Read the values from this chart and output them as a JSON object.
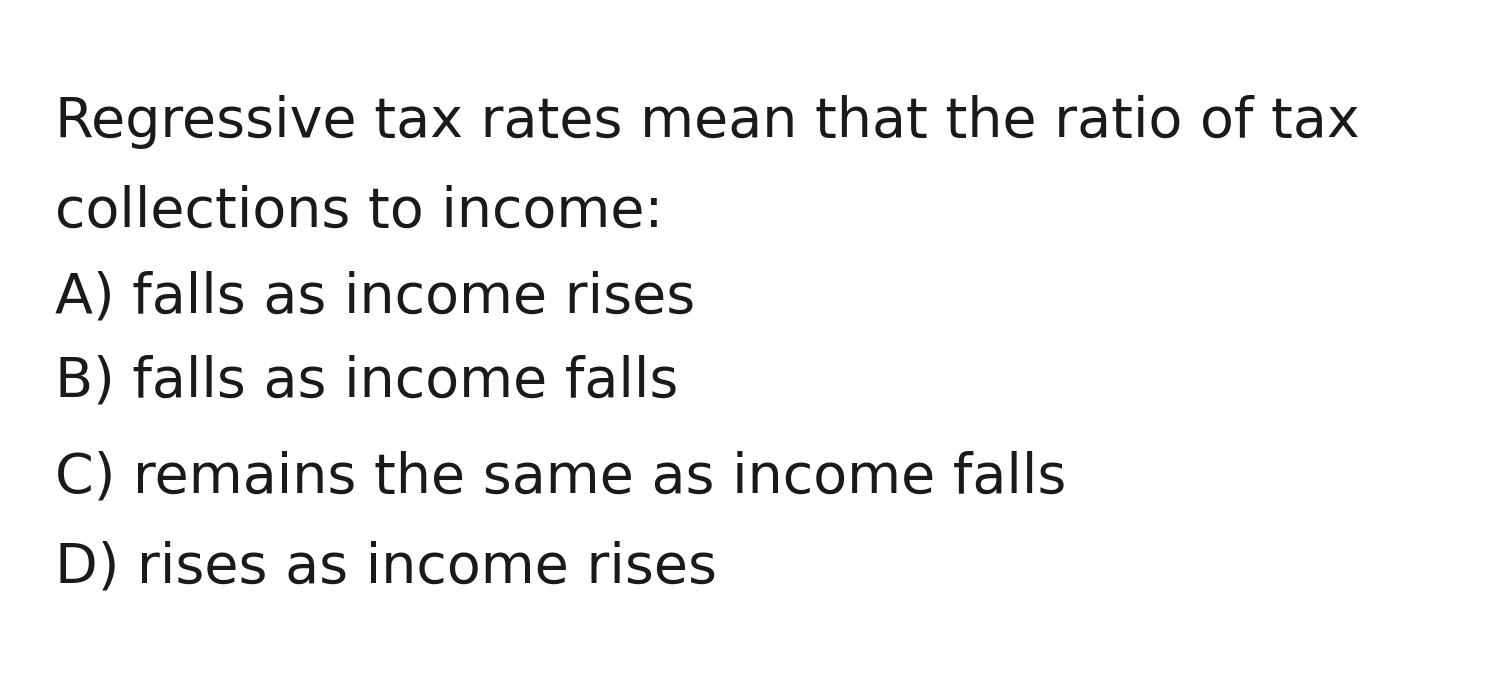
{
  "background_color": "#ffffff",
  "text_color": "#1a1a1a",
  "line1": "Regressive tax rates mean that the ratio of tax",
  "line2": "collections to income:",
  "options": [
    "A) falls as income rises",
    "B) falls as income falls",
    "C) remains the same as income falls",
    "D) rises as income rises"
  ],
  "font_size": 40,
  "fig_width": 15.0,
  "fig_height": 6.88,
  "dpi": 100
}
